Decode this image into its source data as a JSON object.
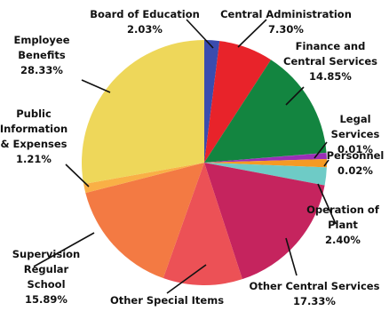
{
  "chart_data": {
    "type": "pie",
    "slices": [
      {
        "label": "Board of Education",
        "value": 2.03,
        "display": "2.03%",
        "color": "#3a4cae"
      },
      {
        "label": "Central Administration",
        "value": 7.3,
        "display": "7.30%",
        "color": "#e8232a"
      },
      {
        "label": "Finance and Central Services",
        "value": 14.85,
        "display": "14.85%",
        "color": "#138540"
      },
      {
        "label": "Legal Services",
        "value": 0.01,
        "display": "0.01%",
        "color": "#5b2a86"
      },
      {
        "label": "Personnel",
        "value": 0.02,
        "display": "0.02%",
        "color": "#8a2bb0"
      },
      {
        "label": "Leftover slice (purple)",
        "value": 0.8,
        "display": "",
        "color": "#9b2fb7"
      },
      {
        "label": "Unlabeled slice (orange)",
        "value": 1.1,
        "display": "",
        "color": "#f59a23"
      },
      {
        "label": "Operation of Plant",
        "value": 2.4,
        "display": "2.40%",
        "color": "#6ecbc6"
      },
      {
        "label": "Other Central Services",
        "value": 17.33,
        "display": "17.33%",
        "color": "#c5245e"
      },
      {
        "label": "Other Special Items",
        "value": 10.66,
        "display": "10.66%",
        "color": "#ec5156"
      },
      {
        "label": "Supervision Regular School",
        "value": 15.89,
        "display": "15.89%",
        "color": "#f37a43"
      },
      {
        "label": "Public Information & Expenses",
        "value": 1.21,
        "display": "1.21%",
        "color": "#f9b046"
      },
      {
        "label": "Employee Benefits",
        "value": 28.33,
        "display": "28.33%",
        "color": "#eed75a"
      }
    ]
  },
  "labels": {
    "board": {
      "lines": [
        "Board of Education"
      ],
      "pct": "2.03%"
    },
    "central_admin": {
      "lines": [
        "Central Administration"
      ],
      "pct": "7.30%"
    },
    "finance": {
      "lines": [
        "Finance and",
        "Central Services"
      ],
      "pct": "14.85%"
    },
    "legal": {
      "lines": [
        "Legal",
        "Services"
      ],
      "pct": "0.01%"
    },
    "personnel": {
      "lines": [
        "Personnel"
      ],
      "pct": "0.02%"
    },
    "operation": {
      "lines": [
        "Operation of",
        "Plant"
      ],
      "pct": "2.40%"
    },
    "other_central": {
      "lines": [
        "Other Central Services"
      ],
      "pct": "17.33%"
    },
    "other_special": {
      "lines": [
        "Other Special Items"
      ],
      "pct": "10.66%"
    },
    "supervision": {
      "lines": [
        "Supervision",
        "Regular",
        "School"
      ],
      "pct": "15.89%"
    },
    "public_info": {
      "lines": [
        "Public",
        "Information",
        "& Expenses"
      ],
      "pct": "1.21%"
    },
    "employee": {
      "lines": [
        "Employee",
        "Benefits"
      ],
      "pct": "28.33%"
    }
  }
}
